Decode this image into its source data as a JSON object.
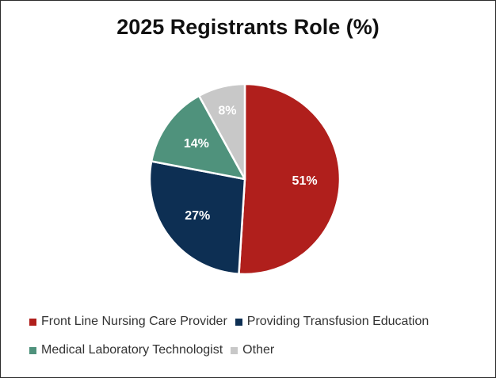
{
  "chart_data": {
    "type": "pie",
    "title": "2025 Registrants Role (%)",
    "categories": [
      "Front Line Nursing Care Provider",
      "Providing Transfusion Education",
      "Medical Laboratory Technologist",
      "Other"
    ],
    "values": [
      51,
      27,
      14,
      8
    ],
    "data_labels": [
      "51%",
      "27%",
      "14%",
      "8%"
    ],
    "colors": [
      "#b01f1c",
      "#0d2f53",
      "#4f927c",
      "#c8c8c8"
    ],
    "legend_position": "bottom",
    "start_angle_deg": 0,
    "direction": "clockwise"
  }
}
